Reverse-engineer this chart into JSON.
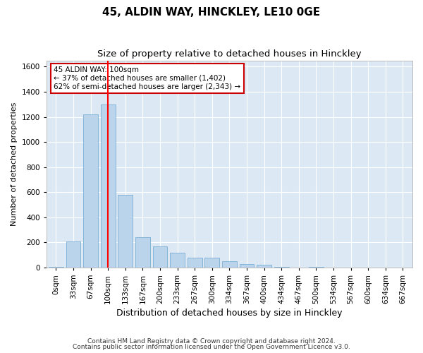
{
  "title": "45, ALDIN WAY, HINCKLEY, LE10 0GE",
  "subtitle": "Size of property relative to detached houses in Hinckley",
  "xlabel": "Distribution of detached houses by size in Hinckley",
  "ylabel": "Number of detached properties",
  "bar_color": "#bad4eb",
  "bar_edge_color": "#7aadd4",
  "bg_color": "#dce9f5",
  "grid_color": "#ffffff",
  "red_line_x": 3,
  "annotation_text": "45 ALDIN WAY: 100sqm\n← 37% of detached houses are smaller (1,402)\n62% of semi-detached houses are larger (2,343) →",
  "annotation_box_color": "#ffffff",
  "annotation_box_edge": "#cc0000",
  "categories": [
    "0sqm",
    "33sqm",
    "67sqm",
    "100sqm",
    "133sqm",
    "167sqm",
    "200sqm",
    "233sqm",
    "267sqm",
    "300sqm",
    "334sqm",
    "367sqm",
    "400sqm",
    "434sqm",
    "467sqm",
    "500sqm",
    "534sqm",
    "567sqm",
    "600sqm",
    "634sqm",
    "667sqm"
  ],
  "values": [
    5,
    210,
    1220,
    1300,
    580,
    240,
    170,
    120,
    80,
    80,
    50,
    30,
    20,
    5,
    0,
    5,
    0,
    0,
    0,
    0,
    0
  ],
  "ylim": [
    0,
    1650
  ],
  "yticks": [
    0,
    200,
    400,
    600,
    800,
    1000,
    1200,
    1400,
    1600
  ],
  "footnote_line1": "Contains HM Land Registry data © Crown copyright and database right 2024.",
  "footnote_line2": "Contains public sector information licensed under the Open Government Licence v3.0.",
  "title_fontsize": 11,
  "subtitle_fontsize": 9.5,
  "xlabel_fontsize": 9,
  "ylabel_fontsize": 8,
  "tick_fontsize": 7.5,
  "annotation_fontsize": 7.5,
  "footnote_fontsize": 6.5
}
